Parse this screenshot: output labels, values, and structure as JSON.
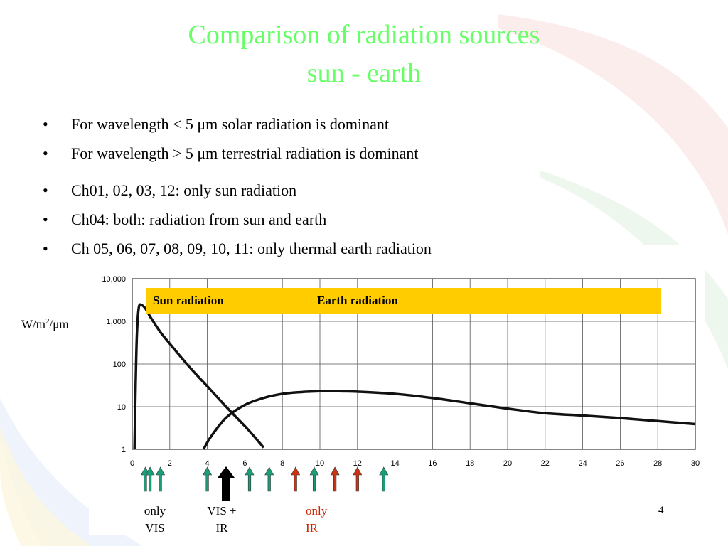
{
  "slide": {
    "title_line1": "Comparison of radiation sources",
    "title_line2": "sun - earth",
    "bullets": [
      "For wavelength < 5 μm solar radiation is dominant",
      "For wavelength  > 5 μm terrestrial radiation is dominant",
      "Ch01, 02, 03, 12: only sun radiation",
      "Ch04: both: radiation from sun and earth",
      "Ch 05, 06, 07, 08, 09, 10, 11:  only thermal earth radiation"
    ],
    "page_number": "4",
    "colors": {
      "title": "#66ff66",
      "legend_bg": "#ffcc00",
      "arrow_green": "#1a9e7a",
      "arrow_red": "#cc3311"
    }
  },
  "chart_data": {
    "type": "line",
    "ylabel_base": "W/m",
    "ylabel_sup": "2",
    "ylabel_tail": "/μm",
    "yscale": "log",
    "ylim": [
      1,
      10000
    ],
    "xlim": [
      0,
      30
    ],
    "y_ticks": [
      {
        "value": 1,
        "label": "1"
      },
      {
        "value": 10,
        "label": "10"
      },
      {
        "value": 100,
        "label": "100"
      },
      {
        "value": 1000,
        "label": "1,000"
      },
      {
        "value": 10000,
        "label": "10,000"
      }
    ],
    "x_ticks": [
      {
        "value": 0,
        "label": "0"
      },
      {
        "value": 2,
        "label": "2"
      },
      {
        "value": 4,
        "label": "4"
      },
      {
        "value": 6,
        "label": "6"
      },
      {
        "value": 8,
        "label": "8"
      },
      {
        "value": 10,
        "label": "10"
      },
      {
        "value": 12,
        "label": "12"
      },
      {
        "value": 14,
        "label": "14"
      },
      {
        "value": 16,
        "label": "16"
      },
      {
        "value": 18,
        "label": "18"
      },
      {
        "value": 20,
        "label": "20"
      },
      {
        "value": 22,
        "label": "22"
      },
      {
        "value": 24,
        "label": "24"
      },
      {
        "value": 26,
        "label": "26"
      },
      {
        "value": 28,
        "label": "28"
      },
      {
        "value": 30,
        "label": "30"
      }
    ],
    "grid": true,
    "legend": {
      "sun": "Sun radiation",
      "earth": "Earth  radiation"
    },
    "series": [
      {
        "name": "Sun radiation",
        "x": [
          0.12,
          0.18,
          0.25,
          0.35,
          0.5,
          0.7,
          1.0,
          1.5,
          2.0,
          3.0,
          4.0,
          5.0,
          6.0,
          6.5,
          7.0
        ],
        "y": [
          1.0,
          30,
          500,
          2100,
          2400,
          2000,
          1200,
          560,
          300,
          90,
          30,
          10,
          3.5,
          2.0,
          1.1
        ]
      },
      {
        "name": "Earth  radiation",
        "x": [
          3.8,
          4.2,
          5.0,
          6.0,
          7.0,
          8.0,
          9.0,
          10.0,
          11.0,
          12.0,
          14.0,
          16.0,
          18.0,
          20.0,
          22.0,
          24.0,
          26.0,
          28.0,
          30.0
        ],
        "y": [
          1.0,
          2.0,
          5.5,
          11,
          16,
          20,
          22,
          23,
          23,
          22.5,
          20,
          16,
          12,
          9.0,
          7.0,
          6.2,
          5.4,
          4.6,
          3.9
        ]
      }
    ],
    "channel_arrows": [
      {
        "x": 0.7,
        "color": "green",
        "size": "small"
      },
      {
        "x": 0.95,
        "color": "green",
        "size": "small"
      },
      {
        "x": 1.5,
        "color": "green",
        "size": "small"
      },
      {
        "x": 4.0,
        "color": "green",
        "size": "small"
      },
      {
        "x": 5.0,
        "color": "black",
        "size": "large"
      },
      {
        "x": 6.25,
        "color": "green",
        "size": "small"
      },
      {
        "x": 7.3,
        "color": "green",
        "size": "small"
      },
      {
        "x": 8.7,
        "color": "red",
        "size": "small"
      },
      {
        "x": 9.7,
        "color": "green",
        "size": "small"
      },
      {
        "x": 10.8,
        "color": "red",
        "size": "small"
      },
      {
        "x": 12.0,
        "color": "red",
        "size": "small"
      },
      {
        "x": 13.4,
        "color": "green",
        "size": "small"
      }
    ],
    "captions": {
      "vis_1": "only",
      "vis_2": "VIS",
      "visir_1": "VIS +",
      "visir_2": "IR",
      "ir_1": "only",
      "ir_2": "IR"
    }
  }
}
